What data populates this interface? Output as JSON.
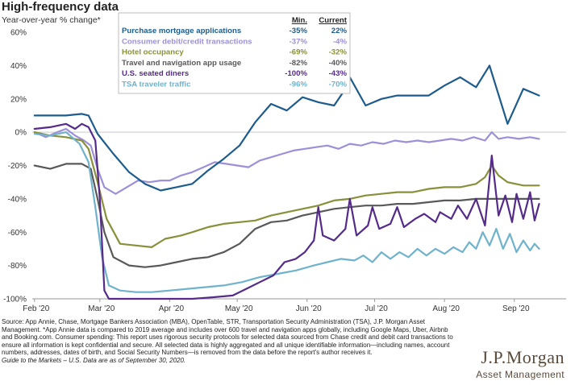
{
  "header": {
    "title": "High-frequency data",
    "subtitle": "Year-over-year % change*"
  },
  "footnote": {
    "source": "Source: App Annie, Chase, Mortgage Bankers Association (MBA), OpenTable, STR, Transportation Security Administration (TSA), J.P. Morgan Asset Management. *App Annie data is compared to 2019 average and includes over 600 travel and navigation apps globally, including Google Maps, Uber, Airbnb and Booking.com. Consumer spending: This report uses rigorous security protocols for selected data sourced from Chase credit and debit card transactions to ensure all information is kept confidential and secure. All selected data is highly aggregated and all unique identifiable information—including names, account numbers, addresses, dates of birth, and Social Security Numbers—is removed from the data before the report's author receives it.",
    "guide_prefix": "Guide to the Markets – U.S.",
    "guide_suffix": " Data are as of September 30, 2020."
  },
  "logo": {
    "brand": "J.P.Morgan",
    "division": "Asset Management"
  },
  "chart_data": {
    "type": "line",
    "ylim": [
      -100,
      60
    ],
    "yticks": [
      60,
      40,
      20,
      0,
      -20,
      -40,
      -60,
      -80,
      -100
    ],
    "ytick_labels": [
      "60%",
      "40%",
      "20%",
      "0%",
      "-20%",
      "-40%",
      "-60%",
      "-80%",
      "-100%"
    ],
    "xlim": [
      0,
      235
    ],
    "xticks": [
      {
        "label": "Feb '20",
        "day": 0
      },
      {
        "label": "Mar '20",
        "day": 29
      },
      {
        "label": "Apr '20",
        "day": 60
      },
      {
        "label": "May '20",
        "day": 90
      },
      {
        "label": "Jun '20",
        "day": 121
      },
      {
        "label": "Jul '20",
        "day": 151
      },
      {
        "label": "Aug '20",
        "day": 182
      },
      {
        "label": "Sep '20",
        "day": 213
      }
    ],
    "x_unit": "days since Feb 1, 2020",
    "zero_line": true,
    "legend": {
      "placement": "top-center",
      "col_min": "Min.",
      "col_current": "Current"
    },
    "series": [
      {
        "name": "Purchase mortgage applications",
        "color": "#1d5c8c",
        "min": "-35%",
        "current": "22%",
        "points": [
          [
            0,
            10
          ],
          [
            7,
            10
          ],
          [
            14,
            10
          ],
          [
            21,
            11
          ],
          [
            24,
            10
          ],
          [
            28,
            -1
          ],
          [
            35,
            -13
          ],
          [
            42,
            -24
          ],
          [
            49,
            -31
          ],
          [
            56,
            -35
          ],
          [
            63,
            -33
          ],
          [
            70,
            -31
          ],
          [
            77,
            -23
          ],
          [
            84,
            -16
          ],
          [
            91,
            -8
          ],
          [
            98,
            6
          ],
          [
            105,
            17
          ],
          [
            112,
            13
          ],
          [
            119,
            21
          ],
          [
            126,
            18
          ],
          [
            133,
            16
          ],
          [
            137,
            24
          ],
          [
            140,
            33
          ],
          [
            147,
            16
          ],
          [
            154,
            20
          ],
          [
            161,
            22
          ],
          [
            168,
            22
          ],
          [
            175,
            22
          ],
          [
            182,
            28
          ],
          [
            189,
            33
          ],
          [
            196,
            27
          ],
          [
            202,
            40
          ],
          [
            210,
            5
          ],
          [
            217,
            26
          ],
          [
            224,
            22
          ]
        ]
      },
      {
        "name": "Consumer debit/credit transactions",
        "color": "#9d8fd8",
        "min": "-37%",
        "current": "-4%",
        "points": [
          [
            0,
            0
          ],
          [
            5,
            -3
          ],
          [
            10,
            0
          ],
          [
            14,
            2
          ],
          [
            18,
            -2
          ],
          [
            22,
            -5
          ],
          [
            25,
            -8
          ],
          [
            28,
            -22
          ],
          [
            31,
            -33
          ],
          [
            36,
            -37
          ],
          [
            41,
            -33
          ],
          [
            46,
            -29
          ],
          [
            51,
            -30
          ],
          [
            56,
            -29
          ],
          [
            60,
            -29
          ],
          [
            65,
            -26
          ],
          [
            70,
            -24
          ],
          [
            75,
            -21
          ],
          [
            80,
            -18
          ],
          [
            85,
            -19
          ],
          [
            90,
            -20
          ],
          [
            95,
            -21
          ],
          [
            100,
            -17
          ],
          [
            105,
            -15
          ],
          [
            110,
            -13
          ],
          [
            115,
            -11
          ],
          [
            120,
            -10
          ],
          [
            125,
            -9
          ],
          [
            130,
            -8
          ],
          [
            135,
            -10
          ],
          [
            140,
            -7
          ],
          [
            145,
            -8
          ],
          [
            150,
            -6
          ],
          [
            155,
            -7
          ],
          [
            160,
            -5
          ],
          [
            165,
            -6
          ],
          [
            170,
            -5
          ],
          [
            175,
            -6
          ],
          [
            180,
            -5
          ],
          [
            185,
            -4
          ],
          [
            190,
            -5
          ],
          [
            195,
            -3
          ],
          [
            200,
            -5
          ],
          [
            203,
            0
          ],
          [
            206,
            -4
          ],
          [
            210,
            -3
          ],
          [
            215,
            -4
          ],
          [
            220,
            -3
          ],
          [
            224,
            -4
          ]
        ]
      },
      {
        "name": "Hotel occupancy",
        "color": "#8a8f3a",
        "min": "-69%",
        "current": "-32%",
        "points": [
          [
            0,
            0
          ],
          [
            7,
            -2
          ],
          [
            14,
            -3
          ],
          [
            21,
            -5
          ],
          [
            24,
            -10
          ],
          [
            28,
            -30
          ],
          [
            32,
            -52
          ],
          [
            38,
            -67
          ],
          [
            45,
            -68
          ],
          [
            52,
            -69
          ],
          [
            58,
            -64
          ],
          [
            65,
            -62
          ],
          [
            70,
            -60
          ],
          [
            77,
            -57
          ],
          [
            84,
            -55
          ],
          [
            91,
            -54
          ],
          [
            98,
            -53
          ],
          [
            105,
            -50
          ],
          [
            112,
            -48
          ],
          [
            119,
            -46
          ],
          [
            126,
            -44
          ],
          [
            133,
            -41
          ],
          [
            140,
            -40
          ],
          [
            147,
            -38
          ],
          [
            154,
            -37
          ],
          [
            161,
            -36
          ],
          [
            168,
            -36
          ],
          [
            175,
            -34
          ],
          [
            182,
            -33
          ],
          [
            189,
            -33
          ],
          [
            196,
            -31
          ],
          [
            200,
            -27
          ],
          [
            203,
            -20
          ],
          [
            206,
            -26
          ],
          [
            210,
            -30
          ],
          [
            217,
            -32
          ],
          [
            224,
            -32
          ]
        ]
      },
      {
        "name": "Travel and navigation app usage",
        "color": "#595959",
        "min": "-82%",
        "current": "-40%",
        "points": [
          [
            0,
            -20
          ],
          [
            7,
            -22
          ],
          [
            14,
            -19
          ],
          [
            21,
            -19
          ],
          [
            25,
            -22
          ],
          [
            28,
            -40
          ],
          [
            31,
            -60
          ],
          [
            35,
            -75
          ],
          [
            42,
            -80
          ],
          [
            49,
            -81
          ],
          [
            56,
            -80
          ],
          [
            63,
            -78
          ],
          [
            70,
            -76
          ],
          [
            77,
            -75
          ],
          [
            84,
            -72
          ],
          [
            91,
            -67
          ],
          [
            98,
            -58
          ],
          [
            105,
            -54
          ],
          [
            112,
            -53
          ],
          [
            119,
            -50
          ],
          [
            126,
            -48
          ],
          [
            133,
            -46
          ],
          [
            140,
            -45
          ],
          [
            147,
            -44
          ],
          [
            154,
            -44
          ],
          [
            161,
            -43
          ],
          [
            168,
            -43
          ],
          [
            175,
            -42
          ],
          [
            182,
            -41
          ],
          [
            189,
            -41
          ],
          [
            196,
            -40
          ],
          [
            203,
            -40
          ],
          [
            210,
            -40
          ],
          [
            217,
            -40
          ],
          [
            224,
            -40
          ]
        ]
      },
      {
        "name": "U.S. seated diners",
        "color": "#552b8a",
        "min": "-100%",
        "current": "-43%",
        "points": [
          [
            0,
            2
          ],
          [
            7,
            3
          ],
          [
            14,
            5
          ],
          [
            18,
            2
          ],
          [
            21,
            5
          ],
          [
            24,
            3
          ],
          [
            27,
            -5
          ],
          [
            29,
            -40
          ],
          [
            31,
            -95
          ],
          [
            33,
            -100
          ],
          [
            40,
            -100
          ],
          [
            50,
            -100
          ],
          [
            60,
            -100
          ],
          [
            70,
            -100
          ],
          [
            80,
            -99
          ],
          [
            88,
            -98
          ],
          [
            94,
            -94
          ],
          [
            100,
            -90
          ],
          [
            106,
            -86
          ],
          [
            111,
            -78
          ],
          [
            116,
            -76
          ],
          [
            120,
            -72
          ],
          [
            124,
            -65
          ],
          [
            126,
            -45
          ],
          [
            128,
            -62
          ],
          [
            133,
            -65
          ],
          [
            138,
            -58
          ],
          [
            140,
            -40
          ],
          [
            143,
            -62
          ],
          [
            148,
            -56
          ],
          [
            150,
            -45
          ],
          [
            153,
            -58
          ],
          [
            158,
            -55
          ],
          [
            161,
            -45
          ],
          [
            164,
            -57
          ],
          [
            169,
            -52
          ],
          [
            173,
            -49
          ],
          [
            178,
            -54
          ],
          [
            180,
            -48
          ],
          [
            185,
            -52
          ],
          [
            188,
            -44
          ],
          [
            192,
            -52
          ],
          [
            196,
            -40
          ],
          [
            200,
            -56
          ],
          [
            203,
            -14
          ],
          [
            206,
            -50
          ],
          [
            209,
            -38
          ],
          [
            212,
            -54
          ],
          [
            214,
            -37
          ],
          [
            217,
            -52
          ],
          [
            220,
            -36
          ],
          [
            222,
            -53
          ],
          [
            224,
            -43
          ]
        ]
      },
      {
        "name": "TSA traveler traffic",
        "color": "#6fb2cc",
        "min": "-96%",
        "current": "-70%",
        "points": [
          [
            0,
            -1
          ],
          [
            7,
            -2
          ],
          [
            14,
            0
          ],
          [
            20,
            -7
          ],
          [
            24,
            -18
          ],
          [
            27,
            -45
          ],
          [
            30,
            -75
          ],
          [
            33,
            -92
          ],
          [
            38,
            -95
          ],
          [
            45,
            -96
          ],
          [
            52,
            -96
          ],
          [
            60,
            -95
          ],
          [
            68,
            -94
          ],
          [
            76,
            -93
          ],
          [
            84,
            -92
          ],
          [
            92,
            -90
          ],
          [
            100,
            -87
          ],
          [
            108,
            -85
          ],
          [
            116,
            -83
          ],
          [
            124,
            -80
          ],
          [
            130,
            -78
          ],
          [
            136,
            -76
          ],
          [
            142,
            -77
          ],
          [
            146,
            -74
          ],
          [
            150,
            -78
          ],
          [
            154,
            -72
          ],
          [
            158,
            -76
          ],
          [
            162,
            -72
          ],
          [
            166,
            -75
          ],
          [
            170,
            -70
          ],
          [
            174,
            -74
          ],
          [
            178,
            -70
          ],
          [
            182,
            -73
          ],
          [
            186,
            -69
          ],
          [
            190,
            -72
          ],
          [
            193,
            -66
          ],
          [
            196,
            -70
          ],
          [
            199,
            -60
          ],
          [
            202,
            -68
          ],
          [
            205,
            -58
          ],
          [
            208,
            -70
          ],
          [
            211,
            -61
          ],
          [
            214,
            -72
          ],
          [
            217,
            -65
          ],
          [
            220,
            -71
          ],
          [
            222,
            -67
          ],
          [
            224,
            -70
          ]
        ]
      }
    ]
  }
}
